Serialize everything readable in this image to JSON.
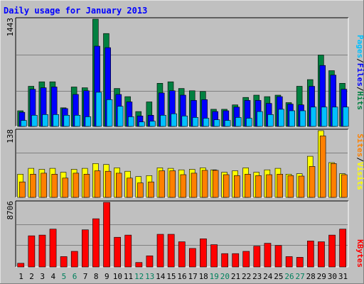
{
  "title": "Daily usage for January 2013",
  "colors": {
    "background": "#c0c0c0",
    "frame_light": "#ffffff",
    "frame_dark": "#808080",
    "title": "#0000ff",
    "hits": "#008040",
    "files": "#0000ff",
    "pages": "#00c0ff",
    "visits": "#ffff00",
    "sites": "#ff8000",
    "kbytes": "#ff0000",
    "weekend_day": "#00805c",
    "weekday": "#000000"
  },
  "legend_top": {
    "pages": "Pages",
    "files": "Files",
    "hits": "Hits",
    "sep": "/"
  },
  "legend_mid": {
    "sites": "Sites",
    "visits": "Visits",
    "sep": "/"
  },
  "legend_bottom": {
    "kbytes": "KBytes"
  },
  "axis_max": {
    "top": "1443",
    "mid": "138",
    "bottom": "8706"
  },
  "chart_data": {
    "type": "bar",
    "categories": [
      "1",
      "2",
      "3",
      "4",
      "5",
      "6",
      "7",
      "8",
      "9",
      "10",
      "11",
      "12",
      "13",
      "14",
      "15",
      "16",
      "17",
      "18",
      "19",
      "20",
      "21",
      "22",
      "23",
      "24",
      "25",
      "26",
      "27",
      "28",
      "29",
      "30",
      "31"
    ],
    "weekend_days": [
      "5",
      "6",
      "12",
      "13",
      "19",
      "20",
      "26",
      "27"
    ],
    "panels": [
      {
        "id": "top",
        "ylim": [
          0,
          1443
        ],
        "series": [
          {
            "name": "Hits",
            "values": [
              210,
              540,
              600,
              600,
              250,
              530,
              520,
              1443,
              1250,
              510,
              400,
              200,
              330,
              580,
              600,
              510,
              480,
              470,
              230,
              230,
              290,
              390,
              420,
              400,
              420,
              320,
              540,
              630,
              960,
              750,
              580
            ]
          },
          {
            "name": "Files",
            "values": [
              190,
              500,
              520,
              530,
              240,
              430,
              480,
              1080,
              1060,
              430,
              330,
              140,
              150,
              450,
              480,
              420,
              350,
              360,
              200,
              210,
              260,
              350,
              350,
              310,
              400,
              300,
              290,
              540,
              820,
              690,
              500
            ]
          },
          {
            "name": "Pages",
            "values": [
              80,
              150,
              160,
              160,
              150,
              150,
              130,
              460,
              360,
              270,
              130,
              60,
              70,
              150,
              170,
              140,
              120,
              110,
              90,
              80,
              120,
              110,
              200,
              160,
              230,
              210,
              210,
              260,
              260,
              260,
              260
            ]
          }
        ]
      },
      {
        "id": "mid",
        "ylim": [
          0,
          138
        ],
        "series": [
          {
            "name": "Visits",
            "values": [
              48,
              60,
              58,
              60,
              52,
              58,
              60,
              70,
              68,
              61,
              54,
              43,
              45,
              61,
              60,
              57,
              58,
              61,
              57,
              52,
              55,
              61,
              52,
              57,
              60,
              48,
              49,
              85,
              138,
              72,
              49
            ]
          },
          {
            "name": "Sites",
            "values": [
              32,
              48,
              50,
              48,
              40,
              50,
              48,
              55,
              54,
              50,
              40,
              30,
              32,
              55,
              55,
              47,
              50,
              56,
              56,
              47,
              45,
              48,
              45,
              47,
              48,
              45,
              44,
              64,
              127,
              70,
              47
            ]
          }
        ]
      },
      {
        "id": "bottom",
        "ylim": [
          0,
          8706
        ],
        "series": [
          {
            "name": "KBytes",
            "values": [
              500,
              4200,
              4300,
              5100,
              1400,
              2100,
              5000,
              6500,
              8706,
              4000,
              4300,
              600,
              1500,
              4400,
              4400,
              3400,
              2500,
              3800,
              3000,
              1800,
              1800,
              2100,
              2800,
              3200,
              2900,
              1400,
              1300,
              3500,
              3400,
              4300,
              5100
            ]
          }
        ]
      }
    ]
  }
}
